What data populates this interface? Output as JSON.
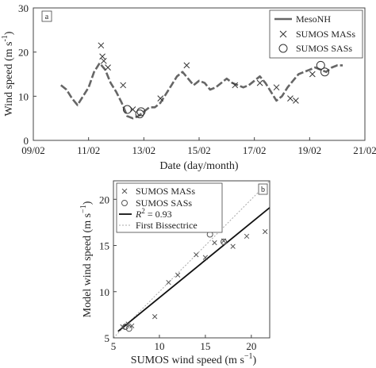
{
  "chart_data": [
    {
      "type": "line",
      "panel_label": "a",
      "xlabel_parts": [
        "Date (day/month)"
      ],
      "ylabel_parts": [
        "Wind speed (m s",
        "-1",
        ")"
      ],
      "x_tick_labels": [
        "09/02",
        "11/02",
        "13/02",
        "15/02",
        "17/02",
        "19/02",
        "21/02"
      ],
      "x_tick_values": [
        0,
        2,
        4,
        6,
        8,
        10,
        12
      ],
      "xlim": [
        0,
        12
      ],
      "ylim": [
        0,
        30
      ],
      "y_ticks": [
        0,
        10,
        20,
        30
      ],
      "legend": [
        "MesoNH",
        "SUMOS MASs",
        "SUMOS SASs"
      ],
      "legend_position": "top-right",
      "series": [
        {
          "name": "MesoNH",
          "style": "dashed-line",
          "color": "#666666",
          "x": [
            1.0,
            1.2,
            1.4,
            1.6,
            1.8,
            2.0,
            2.2,
            2.4,
            2.6,
            2.8,
            3.0,
            3.2,
            3.4,
            3.6,
            3.8,
            4.0,
            4.2,
            4.4,
            4.6,
            4.8,
            5.0,
            5.2,
            5.4,
            5.6,
            5.8,
            6.0,
            6.2,
            6.4,
            6.6,
            6.8,
            7.0,
            7.2,
            7.4,
            7.6,
            7.8,
            8.0,
            8.2,
            8.4,
            8.6,
            8.8,
            9.0,
            9.2,
            9.4,
            9.6,
            9.8,
            10.0,
            10.2,
            10.4,
            10.6,
            10.8,
            11.0,
            11.2
          ],
          "y": [
            12.5,
            11.5,
            9.5,
            8,
            10,
            12,
            15.5,
            17.5,
            16,
            13,
            11,
            8.5,
            5.5,
            5,
            5.5,
            6.5,
            7.5,
            7.5,
            8.5,
            10.5,
            12.5,
            14.5,
            15.5,
            14,
            12.5,
            13.5,
            13,
            11.5,
            12,
            13,
            14,
            13,
            12.5,
            12,
            12.5,
            13.5,
            14.5,
            13,
            11,
            9,
            10,
            12,
            13.5,
            15,
            15.5,
            16,
            16.5,
            16,
            15.5,
            16.5,
            17,
            17
          ]
        },
        {
          "name": "SUMOS MASs",
          "style": "x-marker",
          "x": [
            2.45,
            2.5,
            2.55,
            2.7,
            3.25,
            3.6,
            4.6,
            5.55,
            7.3,
            8.2,
            8.8,
            9.3,
            9.5,
            10.1
          ],
          "y": [
            21.5,
            19,
            18,
            16.5,
            12.5,
            7,
            9.5,
            17,
            12.5,
            13,
            12,
            9.5,
            9,
            15
          ]
        },
        {
          "name": "SUMOS SASs",
          "style": "circle-marker",
          "x": [
            3.4,
            3.85,
            3.9,
            10.4,
            10.55
          ],
          "y": [
            7,
            6,
            6.5,
            17,
            15.5
          ]
        }
      ]
    },
    {
      "type": "scatter",
      "panel_label": "b",
      "xlabel_parts": [
        "SUMOS wind speed (m s",
        "−1",
        ")"
      ],
      "ylabel_parts": [
        "Model wind speed (m s",
        "−1",
        ")"
      ],
      "xlim": [
        5,
        22
      ],
      "ylim": [
        5,
        22
      ],
      "x_ticks": [
        5,
        10,
        15,
        20
      ],
      "y_ticks": [
        5,
        10,
        15,
        20
      ],
      "legend": [
        "SUMOS MASs",
        "SUMOS SASs",
        "R2 = 0.93",
        "First Bissectrice"
      ],
      "legend_position": "top-left",
      "fit_line": {
        "name": "R2 = 0.93",
        "r2_value": "0.93",
        "x": [
          5.5,
          22
        ],
        "y": [
          5.7,
          19.1
        ]
      },
      "bisector": {
        "name": "First Bissectrice",
        "x": [
          5,
          22
        ],
        "y": [
          5,
          22
        ]
      },
      "series": [
        {
          "name": "SUMOS MASs",
          "style": "x-marker",
          "x": [
            6.0,
            6.6,
            7.0,
            9.5,
            11.0,
            12.0,
            14.0,
            15.0,
            16.0,
            17.0,
            18.0,
            19.5,
            21.5
          ],
          "y": [
            6.2,
            6.5,
            6.3,
            7.3,
            11.0,
            11.8,
            14.0,
            13.7,
            15.3,
            15.5,
            14.9,
            16.0,
            16.5
          ]
        },
        {
          "name": "SUMOS SASs",
          "style": "circle-marker",
          "x": [
            6.3,
            6.7,
            15.5,
            17.0
          ],
          "y": [
            6.2,
            6.0,
            16.2,
            15.4
          ]
        }
      ]
    }
  ]
}
